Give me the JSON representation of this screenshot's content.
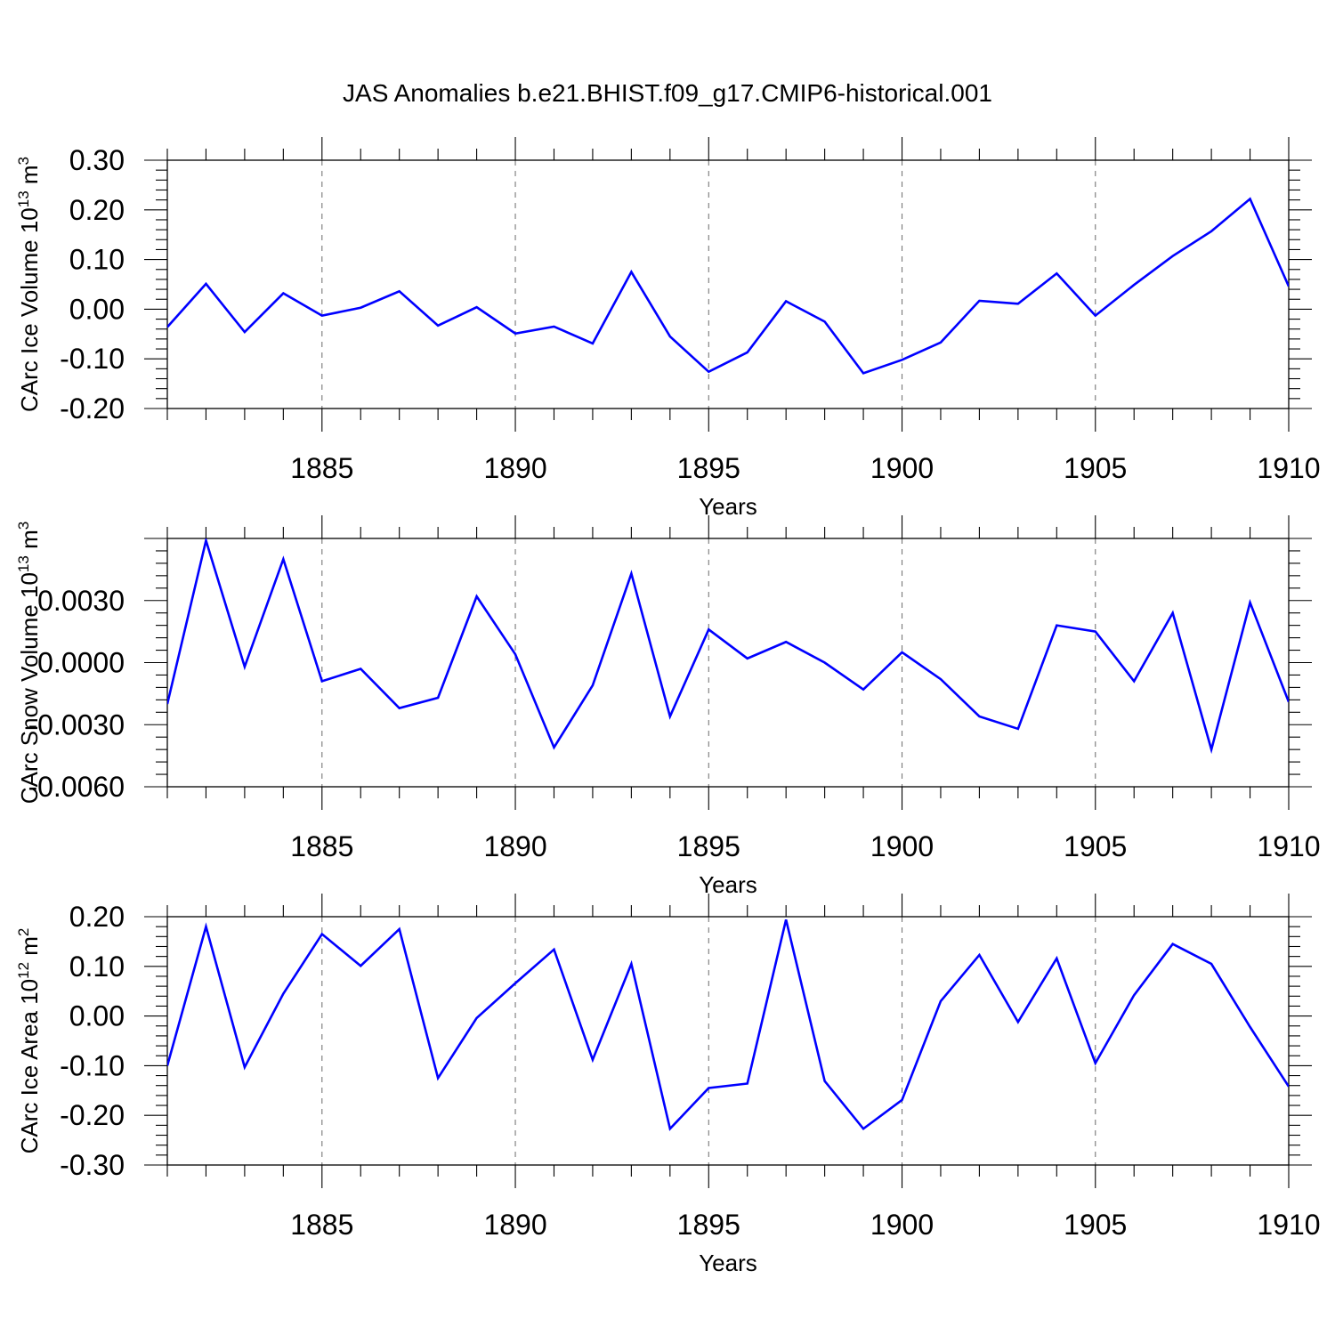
{
  "figure": {
    "title": "JAS Anomalies b.e21.BHIST.f09_g17.CMIP6-historical.001",
    "line_color": "#0000ff"
  },
  "chart_data": [
    {
      "type": "line",
      "xlabel": "Years",
      "ylabel": "CArc Ice Volume 10",
      "ylabel_exp": "13",
      "ylabel_unit": " m",
      "ylabel_unit_exp": "3",
      "xlim": [
        1881,
        1910
      ],
      "ylim": [
        -0.2,
        0.3
      ],
      "xticks": [
        1885,
        1890,
        1895,
        1900,
        1905,
        1910
      ],
      "yticks": [
        0.3,
        0.2,
        0.1,
        0.0,
        -0.1,
        -0.2
      ],
      "ytick_labels": [
        "0.30",
        "0.20",
        "0.10",
        "0.00",
        "-0.10",
        "-0.20"
      ],
      "series": [
        {
          "name": "CArc Ice Volume",
          "x": [
            1881,
            1882,
            1883,
            1884,
            1885,
            1886,
            1887,
            1888,
            1889,
            1890,
            1891,
            1892,
            1893,
            1894,
            1895,
            1896,
            1897,
            1898,
            1899,
            1900,
            1901,
            1902,
            1903,
            1904,
            1905,
            1906,
            1907,
            1908,
            1909,
            1910
          ],
          "values": [
            -0.036,
            0.051,
            -0.046,
            0.032,
            -0.013,
            0.003,
            0.036,
            -0.033,
            0.004,
            -0.049,
            -0.035,
            -0.069,
            0.075,
            -0.055,
            -0.126,
            -0.087,
            0.016,
            -0.025,
            -0.129,
            -0.102,
            -0.067,
            0.017,
            0.011,
            0.072,
            -0.013,
            0.049,
            0.107,
            0.157,
            0.222,
            0.046
          ]
        }
      ]
    },
    {
      "type": "line",
      "xlabel": "Years",
      "ylabel": "CArc Snow Volume 10",
      "ylabel_exp": "13",
      "ylabel_unit": " m",
      "ylabel_unit_exp": "3",
      "xlim": [
        1881,
        1910
      ],
      "ylim": [
        -0.006,
        0.006
      ],
      "xticks": [
        1885,
        1890,
        1895,
        1900,
        1905,
        1910
      ],
      "yticks": [
        0.003,
        0.0,
        -0.003,
        -0.006
      ],
      "ytick_labels": [
        "0.0030",
        "0.0000",
        "-0.0030",
        "-0.0060"
      ],
      "series": [
        {
          "name": "CArc Snow Volume",
          "x": [
            1881,
            1882,
            1883,
            1884,
            1885,
            1886,
            1887,
            1888,
            1889,
            1890,
            1891,
            1892,
            1893,
            1894,
            1895,
            1896,
            1897,
            1898,
            1899,
            1900,
            1901,
            1902,
            1903,
            1904,
            1905,
            1906,
            1907,
            1908,
            1909,
            1910
          ],
          "values": [
            -0.002,
            0.0059,
            -0.0002,
            0.005,
            -0.0009,
            -0.0003,
            -0.0022,
            -0.0017,
            0.0032,
            0.0004,
            -0.0041,
            -0.0011,
            0.0043,
            -0.0026,
            0.0016,
            0.0002,
            0.001,
            0.0,
            -0.0013,
            0.0005,
            -0.0008,
            -0.0026,
            -0.0032,
            0.0018,
            0.0015,
            -0.0009,
            0.0024,
            -0.0042,
            0.0029,
            -0.0019
          ]
        }
      ]
    },
    {
      "type": "line",
      "xlabel": "Years",
      "ylabel": "CArc Ice Area 10",
      "ylabel_exp": "12",
      "ylabel_unit": " m",
      "ylabel_unit_exp": "2",
      "xlim": [
        1881,
        1910
      ],
      "ylim": [
        -0.3,
        0.2
      ],
      "xticks": [
        1885,
        1890,
        1895,
        1900,
        1905,
        1910
      ],
      "yticks": [
        0.2,
        0.1,
        0.0,
        -0.1,
        -0.2,
        -0.3
      ],
      "ytick_labels": [
        "0.20",
        "0.10",
        "0.00",
        "-0.10",
        "-0.20",
        "-0.30"
      ],
      "series": [
        {
          "name": "CArc Ice Area",
          "x": [
            1881,
            1882,
            1883,
            1884,
            1885,
            1886,
            1887,
            1888,
            1889,
            1890,
            1891,
            1892,
            1893,
            1894,
            1895,
            1896,
            1897,
            1898,
            1899,
            1900,
            1901,
            1902,
            1903,
            1904,
            1905,
            1906,
            1907,
            1908,
            1909,
            1910
          ],
          "values": [
            -0.1,
            0.18,
            -0.103,
            0.045,
            0.165,
            0.101,
            0.175,
            -0.125,
            -0.004,
            0.066,
            0.134,
            -0.088,
            0.105,
            -0.227,
            -0.145,
            -0.136,
            0.194,
            -0.131,
            -0.227,
            -0.169,
            0.03,
            0.123,
            -0.012,
            0.116,
            -0.095,
            0.042,
            0.145,
            0.105,
            -0.022,
            -0.142
          ]
        }
      ]
    }
  ]
}
